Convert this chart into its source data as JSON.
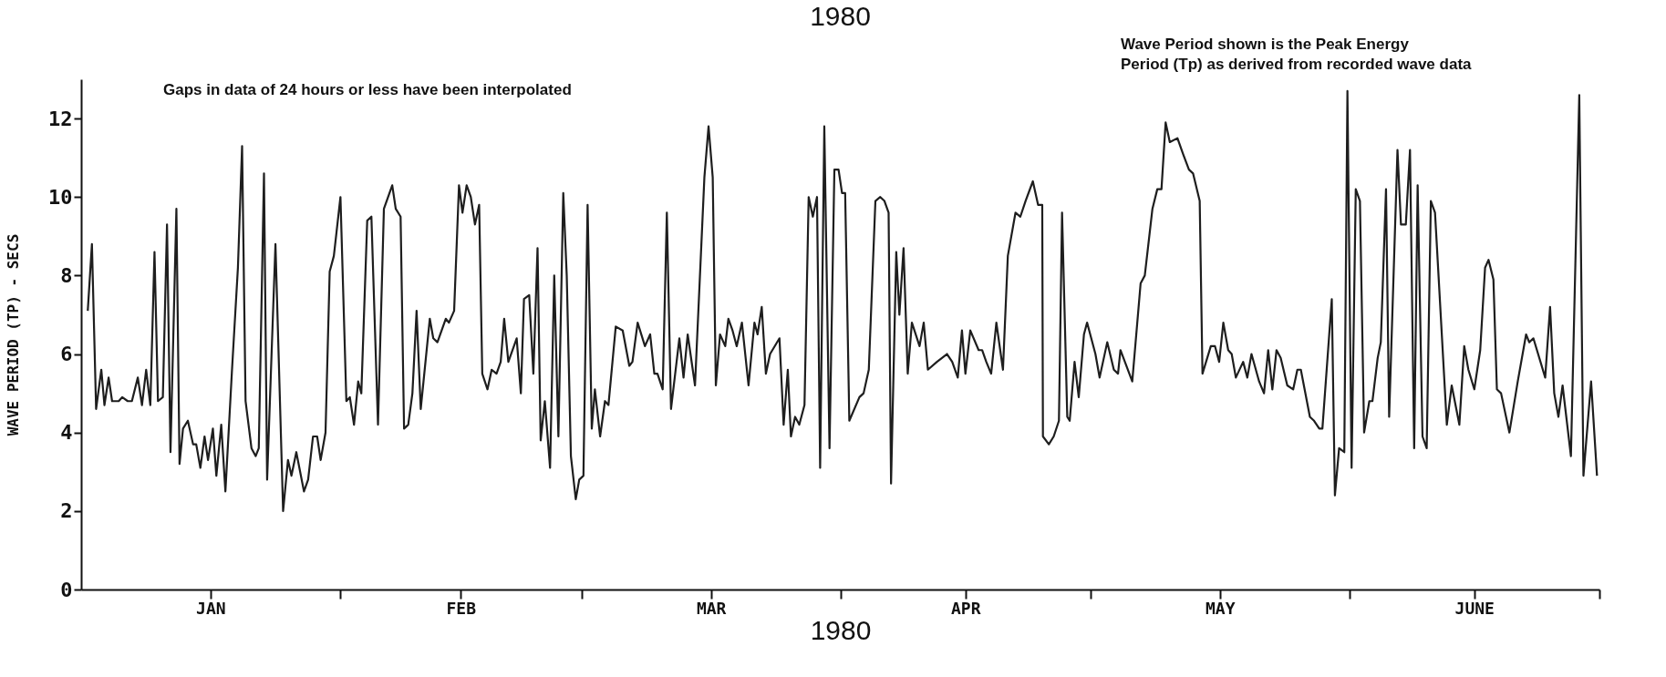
{
  "chart_data": {
    "type": "line",
    "title": "1980",
    "xlabel": "1980",
    "ylabel": "WAVE PERIOD (TP) - SECS",
    "annotations": [
      "Gaps in data of 24 hours or less have been interpolated",
      "Wave Period shown is the Peak Energy",
      "Period (Tp) as derived from recorded wave data"
    ],
    "xlim": [
      "1980-01-01",
      "1980-07-01"
    ],
    "ylim": [
      0,
      13
    ],
    "xticks": [
      {
        "value": "1980-01-16T12:00",
        "label": "JAN"
      },
      {
        "value": "1980-02-01",
        "label": null
      },
      {
        "value": "1980-02-15T12:00",
        "label": "FEB"
      },
      {
        "value": "1980-03-01",
        "label": null
      },
      {
        "value": "1980-03-16T12:00",
        "label": "MAR"
      },
      {
        "value": "1980-04-01",
        "label": null
      },
      {
        "value": "1980-04-16",
        "label": "APR"
      },
      {
        "value": "1980-05-01",
        "label": null
      },
      {
        "value": "1980-05-16T12:00",
        "label": "MAY"
      },
      {
        "value": "1980-06-01",
        "label": null
      },
      {
        "value": "1980-06-16",
        "label": "JUNE"
      },
      {
        "value": "1980-07-01",
        "label": null
      }
    ],
    "yticks": [
      0,
      2,
      4,
      6,
      8,
      10,
      12
    ],
    "x": [
      "1980-01-01T19:00",
      "1980-01-02T07:00",
      "1980-01-02T19:00",
      "1980-01-03T10:00",
      "1980-01-03T19:00",
      "1980-01-04T07:00",
      "1980-01-04T17:00",
      "1980-01-05T12:00",
      "1980-01-05T22:00",
      "1980-01-06T14:00",
      "1980-01-07T02:00",
      "1980-01-07T19:00",
      "1980-01-08T07:00",
      "1980-01-08T19:00",
      "1980-01-09T07:00",
      "1980-01-09T19:00",
      "1980-01-10T05:00",
      "1980-01-10T19:00",
      "1980-01-11T07:00",
      "1980-01-11T17:00",
      "1980-01-12T10:00",
      "1980-01-12T19:00",
      "1980-01-13T05:00",
      "1980-01-13T19:00",
      "1980-01-14T10:00",
      "1980-01-14T19:00",
      "1980-01-15T07:00",
      "1980-01-15T19:00",
      "1980-01-16T05:00",
      "1980-01-16T19:00",
      "1980-01-17T05:00",
      "1980-01-17T19:00",
      "1980-01-18T07:00",
      "1980-01-19T02:00",
      "1980-01-19T19:00",
      "1980-01-20T07:00",
      "1980-01-20T17:00",
      "1980-01-21T10:00",
      "1980-01-21T22:00",
      "1980-01-22T07:00",
      "1980-01-22T22:00",
      "1980-01-23T07:00",
      "1980-01-24T07:00",
      "1980-01-25T05:00",
      "1980-01-25T19:00",
      "1980-01-26T05:00",
      "1980-01-26T19:00",
      "1980-01-27T17:00",
      "1980-01-28T05:00",
      "1980-01-28T19:00",
      "1980-01-29T07:00",
      "1980-01-29T17:00",
      "1980-01-30T07:00",
      "1980-01-30T19:00",
      "1980-01-31T07:00",
      "1980-02-01T02:00",
      "1980-02-01T19:00",
      "1980-02-02T05:00",
      "1980-02-02T17:00",
      "1980-02-03T05:00",
      "1980-02-03T14:00",
      "1980-02-04T07:00",
      "1980-02-04T19:00",
      "1980-02-05T14:00",
      "1980-02-06T07:00",
      "1980-02-07T07:00",
      "1980-02-07T17:00",
      "1980-02-08T07:00",
      "1980-02-08T17:00",
      "1980-02-09T05:00",
      "1980-02-09T17:00",
      "1980-02-10T05:00",
      "1980-02-10T17:00",
      "1980-02-11T19:00",
      "1980-02-12T05:00",
      "1980-02-12T17:00",
      "1980-02-13T17:00",
      "1980-02-14T02:00",
      "1980-02-14T17:00",
      "1980-02-15T07:00",
      "1980-02-15T17:00",
      "1980-02-16T05:00",
      "1980-02-16T17:00",
      "1980-02-17T05:00",
      "1980-02-17T17:00",
      "1980-02-18T02:00",
      "1980-02-18T17:00",
      "1980-02-19T05:00",
      "1980-02-19T19:00",
      "1980-02-20T07:00",
      "1980-02-20T17:00",
      "1980-02-21T05:00",
      "1980-02-22T05:00",
      "1980-02-22T17:00",
      "1980-02-23T02:00",
      "1980-02-23T17:00",
      "1980-02-24T05:00",
      "1980-02-24T17:00",
      "1980-02-25T02:00",
      "1980-02-25T14:00",
      "1980-02-26T05:00",
      "1980-02-26T17:00",
      "1980-02-27T05:00",
      "1980-02-27T19:00",
      "1980-02-28T05:00",
      "1980-02-28T17:00",
      "1980-02-29T07:00",
      "1980-02-29T17:00",
      "1980-03-01T05:00",
      "1980-03-01T17:00",
      "1980-03-02T05:00",
      "1980-03-02T14:00",
      "1980-03-03T05:00",
      "1980-03-03T19:00",
      "1980-03-04T05:00",
      "1980-03-05T02:00",
      "1980-03-05T22:00",
      "1980-03-06T17:00",
      "1980-03-07T02:00",
      "1980-03-07T17:00",
      "1980-03-08T14:00",
      "1980-03-09T05:00",
      "1980-03-09T17:00",
      "1980-03-10T02:00",
      "1980-03-10T17:00",
      "1980-03-11T05:00",
      "1980-03-11T17:00",
      "1980-03-12T17:00",
      "1980-03-13T05:00",
      "1980-03-13T17:00",
      "1980-03-14T14:00",
      "1980-03-15T17:00",
      "1980-03-16T05:00",
      "1980-03-16T17:00",
      "1980-03-17T02:00",
      "1980-03-17T14:00",
      "1980-03-18T05:00",
      "1980-03-18T14:00",
      "1980-03-19T02:00",
      "1980-03-19T14:00",
      "1980-03-20T05:00",
      "1980-03-21T00:00",
      "1980-03-21T17:00",
      "1980-03-22T02:00",
      "1980-03-22T14:00",
      "1980-03-23T02:00",
      "1980-03-23T14:00",
      "1980-03-24T17:00",
      "1980-03-25T05:00",
      "1980-03-25T17:00",
      "1980-03-26T02:00",
      "1980-03-26T14:00",
      "1980-03-27T02:00",
      "1980-03-27T17:00",
      "1980-03-28T05:00",
      "1980-03-28T17:00",
      "1980-03-29T05:00",
      "1980-03-29T14:00",
      "1980-03-30T02:00",
      "1980-03-30T17:00",
      "1980-03-31T07:00",
      "1980-03-31T19:00",
      "1980-04-01T05:00",
      "1980-04-01T14:00",
      "1980-04-02T02:00",
      "1980-04-03T07:00",
      "1980-04-03T19:00",
      "1980-04-04T10:00",
      "1980-04-05T05:00",
      "1980-04-05T19:00",
      "1980-04-06T07:00",
      "1980-04-06T19:00",
      "1980-04-07T02:00",
      "1980-04-07T17:00",
      "1980-04-08T02:00",
      "1980-04-08T14:00",
      "1980-04-09T02:00",
      "1980-04-09T14:00",
      "1980-04-10T12:00",
      "1980-04-11T00:00",
      "1980-04-11T12:00",
      "1980-04-12T14:00",
      "1980-04-13T19:00",
      "1980-04-14T10:00",
      "1980-04-15T02:00",
      "1980-04-15T14:00",
      "1980-04-16T00:00",
      "1980-04-16T14:00",
      "1980-04-17T14:00",
      "1980-04-18T00:00",
      "1980-04-18T12:00",
      "1980-04-19T02:00",
      "1980-04-19T17:00",
      "1980-04-20T12:00",
      "1980-04-21T02:00",
      "1980-04-22T00:00",
      "1980-04-22T14:00",
      "1980-04-23T05:00",
      "1980-04-24T02:00",
      "1980-04-24T17:00",
      "1980-04-25T05:00",
      "1980-04-25T07:00",
      "1980-04-26T00:00",
      "1980-04-26T14:00",
      "1980-04-27T05:00",
      "1980-04-27T14:00",
      "1980-04-28T05:00",
      "1980-04-28T12:00",
      "1980-04-29T02:00",
      "1980-04-29T14:00",
      "1980-04-30T05:00",
      "1980-04-30T14:00",
      "1980-05-01T14:00",
      "1980-05-02T02:00",
      "1980-05-03T00:00",
      "1980-05-03T19:00",
      "1980-05-04T07:00",
      "1980-05-04T14:00",
      "1980-05-06T00:00",
      "1980-05-07T00:00",
      "1980-05-07T12:00",
      "1980-05-08T10:00",
      "1980-05-09T00:00",
      "1980-05-09T12:00",
      "1980-05-10T00:00",
      "1980-05-10T12:00",
      "1980-05-11T10:00",
      "1980-05-12T02:00",
      "1980-05-12T19:00",
      "1980-05-13T07:00",
      "1980-05-14T02:00",
      "1980-05-14T10:00",
      "1980-05-15T10:00",
      "1980-05-15T22:00",
      "1980-05-16T10:00",
      "1980-05-16T22:00",
      "1980-05-17T12:00",
      "1980-05-17T22:00",
      "1980-05-18T10:00",
      "1980-05-19T07:00",
      "1980-05-19T19:00",
      "1980-05-20T07:00",
      "1980-05-21T05:00",
      "1980-05-21T19:00",
      "1980-05-22T07:00",
      "1980-05-22T19:00",
      "1980-05-23T07:00",
      "1980-05-23T19:00",
      "1980-05-24T14:00",
      "1980-05-25T07:00",
      "1980-05-25T19:00",
      "1980-05-26T05:00",
      "1980-05-27T07:00",
      "1980-05-27T19:00",
      "1980-05-28T10:00",
      "1980-05-28T19:00",
      "1980-05-29T22:00",
      "1980-05-30T07:00",
      "1980-05-30T19:00",
      "1980-05-31T10:00",
      "1980-05-31T19:00",
      "1980-06-01T07:00",
      "1980-06-01T19:00",
      "1980-06-02T07:00",
      "1980-06-02T19:00",
      "1980-06-03T10:00",
      "1980-06-03T19:00",
      "1980-06-04T10:00",
      "1980-06-04T19:00",
      "1980-06-05T10:00",
      "1980-06-05T19:00",
      "1980-06-06T19:00",
      "1980-06-07T05:00",
      "1980-06-07T19:00",
      "1980-06-08T07:00",
      "1980-06-08T19:00",
      "1980-06-09T05:00",
      "1980-06-09T19:00",
      "1980-06-10T07:00",
      "1980-06-10T19:00",
      "1980-06-11T07:00",
      "1980-06-12T17:00",
      "1980-06-13T07:00",
      "1980-06-14T05:00",
      "1980-06-14T19:00",
      "1980-06-15T07:00",
      "1980-06-16T00:00",
      "1980-06-16T17:00",
      "1980-06-17T07:00",
      "1980-06-17T17:00",
      "1980-06-18T07:00",
      "1980-06-18T17:00",
      "1980-06-19T05:00",
      "1980-06-20T05:00",
      "1980-06-21T05:00",
      "1980-06-22T05:00",
      "1980-06-22T14:00",
      "1980-06-23T02:00",
      "1980-06-24T12:00",
      "1980-06-25T02:00",
      "1980-06-25T14:00",
      "1980-06-26T02:00",
      "1980-06-26T14:00",
      "1980-06-27T14:00",
      "1980-06-28T14:00",
      "1980-06-29T02:00",
      "1980-06-30T00:00",
      "1980-06-30T17:00"
    ],
    "series": [
      {
        "color": "#1e1e1e",
        "values": [
          7.1,
          8.8,
          4.6,
          5.6,
          4.7,
          5.4,
          4.8,
          4.8,
          4.9,
          4.8,
          4.8,
          5.4,
          4.7,
          5.6,
          4.7,
          8.6,
          4.8,
          4.9,
          9.3,
          3.5,
          9.7,
          3.2,
          4.1,
          4.3,
          3.7,
          3.7,
          3.1,
          3.9,
          3.3,
          4.1,
          2.9,
          4.2,
          2.5,
          5.6,
          8.2,
          11.3,
          4.8,
          3.6,
          3.4,
          3.6,
          10.6,
          2.8,
          8.8,
          2.0,
          3.3,
          2.9,
          3.5,
          2.5,
          2.8,
          3.9,
          3.9,
          3.3,
          4.0,
          8.1,
          8.5,
          10.0,
          4.8,
          4.9,
          4.2,
          5.3,
          5.0,
          9.4,
          9.5,
          4.2,
          9.7,
          10.3,
          9.7,
          9.5,
          4.1,
          4.2,
          5.0,
          7.1,
          4.6,
          6.9,
          6.4,
          6.3,
          6.9,
          6.8,
          7.1,
          10.3,
          9.6,
          10.3,
          10.0,
          9.3,
          9.8,
          5.5,
          5.1,
          5.6,
          5.5,
          5.8,
          6.9,
          5.8,
          6.4,
          5.0,
          7.4,
          7.5,
          5.5,
          8.7,
          3.8,
          4.8,
          3.1,
          8.0,
          3.9,
          10.1,
          8.0,
          3.4,
          2.3,
          2.8,
          2.9,
          9.8,
          4.1,
          5.1,
          3.9,
          4.8,
          4.7,
          6.7,
          6.6,
          5.7,
          5.8,
          6.8,
          6.2,
          6.5,
          5.5,
          5.5,
          5.1,
          9.6,
          4.6,
          6.4,
          5.4,
          6.5,
          5.2,
          10.5,
          11.8,
          10.5,
          5.2,
          6.5,
          6.2,
          6.9,
          6.6,
          6.2,
          6.8,
          5.2,
          6.8,
          6.5,
          7.2,
          5.5,
          6.0,
          6.4,
          4.2,
          5.6,
          3.9,
          4.4,
          4.2,
          4.7,
          10.0,
          9.5,
          10.0,
          3.1,
          11.8,
          3.6,
          10.7,
          10.7,
          10.1,
          10.1,
          4.3,
          4.9,
          5.0,
          5.6,
          9.9,
          10.0,
          9.9,
          9.6,
          2.7,
          8.6,
          7.0,
          8.7,
          5.5,
          6.8,
          6.2,
          6.8,
          5.6,
          5.8,
          6.0,
          5.8,
          5.4,
          6.6,
          5.5,
          6.6,
          6.1,
          6.1,
          5.8,
          5.5,
          6.8,
          5.6,
          8.5,
          9.6,
          9.5,
          9.9,
          10.4,
          9.8,
          9.8,
          3.9,
          3.7,
          3.9,
          4.3,
          9.6,
          4.4,
          4.3,
          5.8,
          4.9,
          6.5,
          6.8,
          6.0,
          5.4,
          6.3,
          5.6,
          5.5,
          6.1,
          5.3,
          7.8,
          8.0,
          9.7,
          10.2,
          10.2,
          11.9,
          11.4,
          11.5,
          11.1,
          10.7,
          10.6,
          9.9,
          5.5,
          6.2,
          6.2,
          5.8,
          6.8,
          6.1,
          6.0,
          5.4,
          5.8,
          5.4,
          6.0,
          5.3,
          5.0,
          6.1,
          5.1,
          6.1,
          5.9,
          5.2,
          5.1,
          5.6,
          5.6,
          4.4,
          4.3,
          4.1,
          4.1,
          7.4,
          2.4,
          3.6,
          3.5,
          12.7,
          3.1,
          10.2,
          9.9,
          4.0,
          4.8,
          4.8,
          5.9,
          6.3,
          10.2,
          4.4,
          11.2,
          9.3,
          9.3,
          11.2,
          3.6,
          10.3,
          3.9,
          3.6,
          9.9,
          9.6,
          4.2,
          5.2,
          4.2,
          6.2,
          5.6,
          5.1,
          6.1,
          8.2,
          8.4,
          7.9,
          5.1,
          5.0,
          4.0,
          5.3,
          6.5,
          6.3,
          6.4,
          5.4,
          7.2,
          5.0,
          4.4,
          5.2,
          3.4,
          12.6,
          2.9,
          5.3,
          2.9
        ]
      }
    ]
  }
}
